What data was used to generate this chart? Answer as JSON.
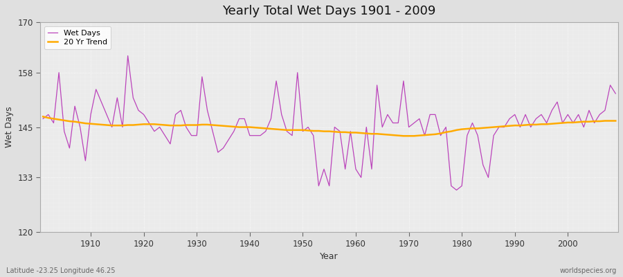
{
  "title": "Yearly Total Wet Days 1901 - 2009",
  "xlabel": "Year",
  "ylabel": "Wet Days",
  "ylim": [
    120,
    170
  ],
  "yticks": [
    120,
    133,
    145,
    158,
    170
  ],
  "start_year": 1901,
  "end_year": 2009,
  "wet_days_color": "#bb44bb",
  "trend_color": "#ffaa00",
  "fig_bg_color": "#e0e0e0",
  "plot_bg_color": "#ebebeb",
  "grid_color": "#ffffff",
  "subtitle": "Latitude -23.25 Longitude 46.25",
  "watermark": "worldspecies.org",
  "wet_days": [
    147,
    148,
    146,
    158,
    144,
    140,
    150,
    145,
    137,
    148,
    154,
    151,
    148,
    145,
    152,
    145,
    162,
    152,
    149,
    148,
    146,
    144,
    145,
    143,
    141,
    148,
    149,
    145,
    143,
    143,
    157,
    149,
    144,
    139,
    140,
    142,
    144,
    147,
    147,
    143,
    143,
    143,
    144,
    147,
    156,
    148,
    144,
    143,
    158,
    144,
    145,
    143,
    131,
    135,
    131,
    145,
    144,
    135,
    144,
    135,
    133,
    145,
    135,
    155,
    145,
    148,
    146,
    146,
    156,
    145,
    146,
    147,
    143,
    148,
    148,
    143,
    145,
    131,
    130,
    131,
    143,
    146,
    143,
    136,
    133,
    143,
    145,
    145,
    147,
    148,
    145,
    148,
    145,
    147,
    148,
    146,
    149,
    151,
    146,
    148,
    146,
    148,
    145,
    149,
    146,
    148,
    149,
    155,
    153
  ],
  "trend_20yr": [
    147.5,
    147.2,
    147.0,
    146.8,
    146.6,
    146.4,
    146.3,
    146.1,
    145.9,
    145.8,
    145.7,
    145.6,
    145.5,
    145.4,
    145.4,
    145.4,
    145.5,
    145.5,
    145.6,
    145.7,
    145.7,
    145.7,
    145.6,
    145.5,
    145.4,
    145.4,
    145.4,
    145.5,
    145.5,
    145.5,
    145.6,
    145.6,
    145.5,
    145.4,
    145.3,
    145.2,
    145.1,
    145.0,
    145.0,
    145.0,
    144.9,
    144.8,
    144.7,
    144.6,
    144.5,
    144.4,
    144.3,
    144.3,
    144.3,
    144.3,
    144.2,
    144.1,
    144.1,
    144.0,
    144.0,
    143.9,
    143.8,
    143.8,
    143.7,
    143.7,
    143.6,
    143.5,
    143.4,
    143.4,
    143.3,
    143.2,
    143.1,
    143.0,
    142.9,
    142.9,
    142.9,
    143.0,
    143.1,
    143.2,
    143.3,
    143.5,
    143.8,
    144.0,
    144.3,
    144.5,
    144.6,
    144.7,
    144.7,
    144.8,
    144.9,
    145.0,
    145.1,
    145.2,
    145.3,
    145.4,
    145.4,
    145.5,
    145.6,
    145.6,
    145.7,
    145.7,
    145.8,
    145.9,
    146.0,
    146.1,
    146.1,
    146.2,
    146.3,
    146.3,
    146.4,
    146.4,
    146.5,
    146.5,
    146.5
  ]
}
